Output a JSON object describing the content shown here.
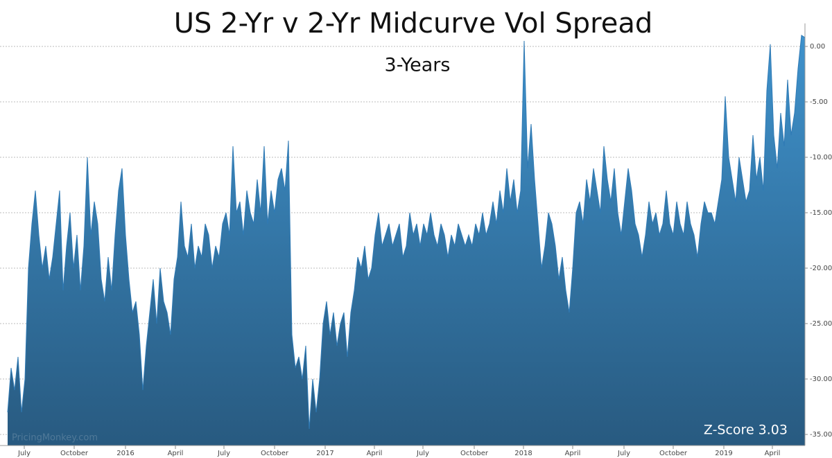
{
  "chart_data": {
    "type": "area",
    "title": "US 2-Yr v 2-Yr Midcurve Vol Spread",
    "subtitle": "3-Years",
    "annotation": "Z-Score 3.03",
    "watermark": "PricingMonkey.com",
    "color": "#2f7ab5",
    "x": [
      0,
      1,
      2,
      3,
      4,
      5,
      6,
      7,
      8,
      9,
      10,
      11,
      12,
      13,
      14,
      15,
      16,
      17,
      18,
      19,
      20,
      21,
      22,
      23,
      24,
      25,
      26,
      27,
      28,
      29,
      30,
      31,
      32,
      33,
      34,
      35,
      36,
      37,
      38,
      39,
      40,
      41,
      42,
      43,
      44,
      45,
      46,
      47,
      48,
      49,
      50,
      51,
      52,
      53,
      54,
      55,
      56,
      57,
      58,
      59,
      60,
      61,
      62,
      63,
      64,
      65,
      66,
      67,
      68,
      69,
      70,
      71,
      72,
      73,
      74,
      75,
      76,
      77,
      78,
      79,
      80,
      81,
      82,
      83,
      84,
      85,
      86,
      87,
      88,
      89,
      90,
      91,
      92,
      93,
      94,
      95,
      96,
      97,
      98,
      99,
      100,
      101,
      102,
      103,
      104,
      105,
      106,
      107,
      108,
      109,
      110,
      111,
      112,
      113,
      114,
      115,
      116,
      117,
      118,
      119,
      120,
      121,
      122,
      123,
      124,
      125,
      126,
      127,
      128,
      129,
      130,
      131,
      132,
      133,
      134,
      135,
      136,
      137,
      138,
      139,
      140,
      141,
      142,
      143,
      144,
      145,
      146,
      147,
      148,
      149,
      150,
      151,
      152,
      153,
      154,
      155,
      156,
      157,
      158,
      159,
      160,
      161,
      162,
      163,
      164,
      165,
      166,
      167,
      168,
      169,
      170,
      171,
      172,
      173,
      174,
      175,
      176,
      177,
      178,
      179,
      180,
      181,
      182,
      183,
      184,
      185,
      186,
      187,
      188,
      189,
      190,
      191,
      192,
      193,
      194,
      195,
      196,
      197,
      198,
      199,
      200,
      201,
      202,
      203,
      204,
      205,
      206,
      207,
      208,
      209,
      210,
      211,
      212,
      213,
      214,
      215,
      216,
      217,
      218,
      219,
      220,
      221,
      222,
      223,
      224,
      225,
      226,
      227,
      228,
      229,
      230
    ],
    "values": [
      -33,
      -29,
      -31,
      -28,
      -33,
      -30,
      -20,
      -16,
      -13,
      -17,
      -20,
      -18,
      -21,
      -19,
      -16,
      -13,
      -22,
      -18,
      -15,
      -20,
      -17,
      -22,
      -18,
      -10,
      -17,
      -14,
      -16,
      -21,
      -23,
      -19,
      -22,
      -17,
      -13,
      -11,
      -17,
      -21,
      -24,
      -23,
      -26,
      -31,
      -27,
      -24,
      -21,
      -25,
      -20,
      -23,
      -24,
      -26,
      -21,
      -19,
      -14,
      -18,
      -19,
      -16,
      -20,
      -18,
      -19,
      -16,
      -17,
      -20,
      -18,
      -19,
      -16,
      -15,
      -17,
      -9,
      -15,
      -14,
      -17,
      -13,
      -15,
      -16,
      -12,
      -15,
      -9,
      -16,
      -13,
      -15,
      -12,
      -11,
      -13,
      -8.5,
      -26,
      -29,
      -28,
      -30,
      -27,
      -34.5,
      -30,
      -33,
      -30,
      -25,
      -23,
      -26,
      -24,
      -27,
      -25,
      -24,
      -28,
      -24,
      -22,
      -19,
      -20,
      -18,
      -21,
      -20,
      -17,
      -15,
      -18,
      -17,
      -16,
      -18,
      -17,
      -16,
      -19,
      -18,
      -15,
      -17,
      -16,
      -18,
      -16,
      -17,
      -15,
      -17,
      -18,
      -16,
      -17,
      -19,
      -17,
      -18,
      -16,
      -17,
      -18,
      -17,
      -18,
      -16,
      -17,
      -15,
      -17,
      -16,
      -14,
      -16,
      -13,
      -15,
      -11,
      -14,
      -12,
      -15,
      -13,
      0.5,
      -11,
      -7,
      -12,
      -16,
      -20,
      -18,
      -15,
      -16,
      -18,
      -21,
      -19,
      -22,
      -24,
      -20,
      -15,
      -14,
      -16,
      -12,
      -14,
      -11,
      -13,
      -15,
      -9,
      -12,
      -14,
      -11,
      -15,
      -17,
      -14,
      -11,
      -13,
      -16,
      -17,
      -19,
      -17,
      -14,
      -16,
      -15,
      -17,
      -16,
      -13,
      -16,
      -17,
      -14,
      -16,
      -17,
      -14,
      -16,
      -17,
      -19,
      -16,
      -14,
      -15,
      -15,
      -16,
      -14,
      -12,
      -4.5,
      -10,
      -12,
      -14,
      -10,
      -12,
      -14,
      -13,
      -8,
      -12,
      -10,
      -13,
      -4,
      0.2,
      -8,
      -11,
      -6,
      -9,
      -3,
      -8,
      -6,
      -2,
      1.0,
      0.8
    ],
    "xlim": [
      0,
      230
    ],
    "xticks": [
      {
        "value": 4.8,
        "label": "July"
      },
      {
        "value": 19.2,
        "label": "October"
      },
      {
        "value": 34,
        "label": "2016"
      },
      {
        "value": 48.4,
        "label": "April"
      },
      {
        "value": 62.4,
        "label": "July"
      },
      {
        "value": 77,
        "label": "October"
      },
      {
        "value": 91.6,
        "label": "2017"
      },
      {
        "value": 105.8,
        "label": "April"
      },
      {
        "value": 119.8,
        "label": "July"
      },
      {
        "value": 134.6,
        "label": "October"
      },
      {
        "value": 148.8,
        "label": "2018"
      },
      {
        "value": 163,
        "label": "April"
      },
      {
        "value": 177.8,
        "label": "July"
      },
      {
        "value": 192,
        "label": "October"
      },
      {
        "value": 206.6,
        "label": "2019"
      },
      {
        "value": 220.6,
        "label": "April"
      }
    ],
    "ylim": [
      -36,
      1.7
    ],
    "yticks": [
      {
        "value": 0,
        "label": "0.00"
      },
      {
        "value": -5,
        "label": "-5.00"
      },
      {
        "value": -10,
        "label": "-10.00"
      },
      {
        "value": -15,
        "label": "-15.00"
      },
      {
        "value": -20,
        "label": "-20.00"
      },
      {
        "value": -25,
        "label": "-25.00"
      },
      {
        "value": -30,
        "label": "-30.00"
      },
      {
        "value": -35,
        "label": "-35.00"
      }
    ],
    "grid": true
  }
}
